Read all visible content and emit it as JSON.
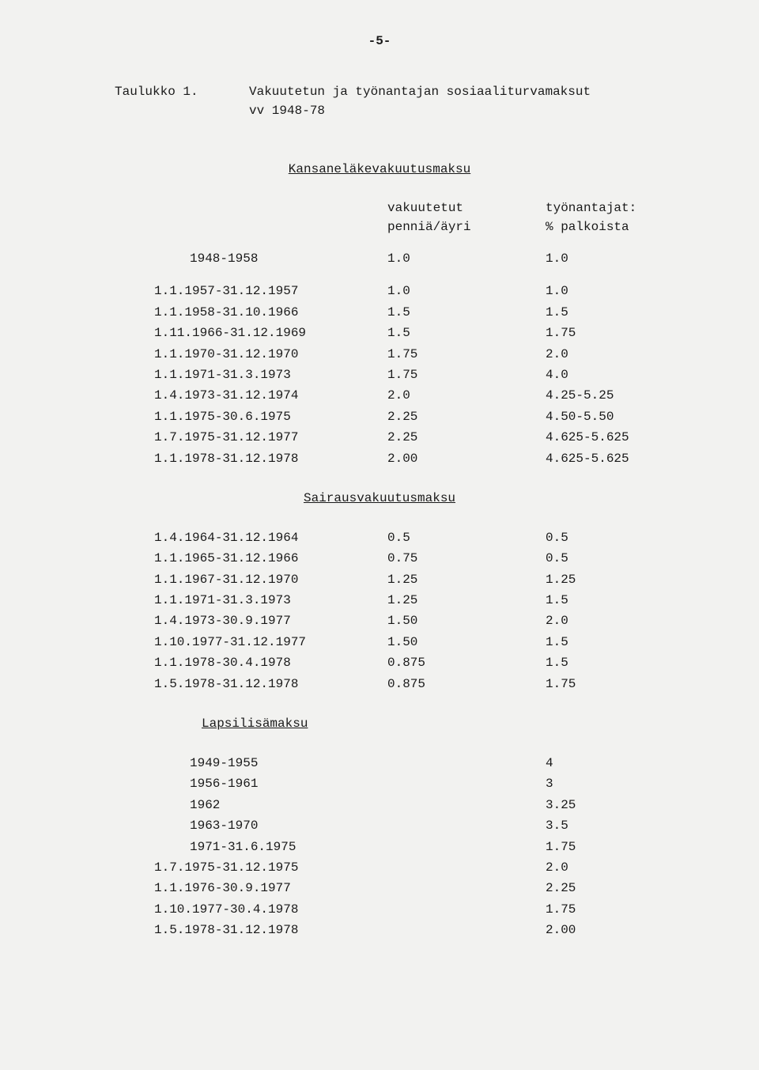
{
  "page_number": "-5-",
  "title_label": "Taulukko 1.",
  "title_text_line1": "Vakuutetun ja työnantajan sosiaaliturvamaksut",
  "title_text_line2": "vv 1948-78",
  "section1": {
    "heading": "Kansaneläkevakuutusmaksu",
    "col1_header_line1": "vakuutetut",
    "col1_header_line2": "penniä/äyri",
    "col2_header_line1": "työnantajat:",
    "col2_header_line2": "% palkoista",
    "rows": [
      {
        "period": "1948-1958",
        "indent": true,
        "v1": "1.0",
        "v2": "1.0"
      },
      {
        "period": "1.1.1957-31.12.1957",
        "v1": "1.0",
        "v2": "1.0"
      },
      {
        "period": "1.1.1958-31.10.1966",
        "v1": "1.5",
        "v2": "1.5"
      },
      {
        "period": "1.11.1966-31.12.1969",
        "v1": "1.5",
        "v2": "1.75"
      },
      {
        "period": "1.1.1970-31.12.1970",
        "v1": "1.75",
        "v2": "2.0"
      },
      {
        "period": "1.1.1971-31.3.1973",
        "v1": "1.75",
        "v2": "4.0"
      },
      {
        "period": "1.4.1973-31.12.1974",
        "v1": "2.0",
        "v2": "4.25-5.25"
      },
      {
        "period": "1.1.1975-30.6.1975",
        "v1": "2.25",
        "v2": "4.50-5.50"
      },
      {
        "period": "1.7.1975-31.12.1977",
        "v1": "2.25",
        "v2": "4.625-5.625"
      },
      {
        "period": "1.1.1978-31.12.1978",
        "v1": "2.00",
        "v2": "4.625-5.625"
      }
    ]
  },
  "section2": {
    "heading": "Sairausvakuutusmaksu",
    "rows": [
      {
        "period": "1.4.1964-31.12.1964",
        "v1": "0.5",
        "v2": "0.5"
      },
      {
        "period": "1.1.1965-31.12.1966",
        "v1": "0.75",
        "v2": "0.5"
      },
      {
        "period": "1.1.1967-31.12.1970",
        "v1": "1.25",
        "v2": "1.25"
      },
      {
        "period": "1.1.1971-31.3.1973",
        "v1": "1.25",
        "v2": "1.5"
      },
      {
        "period": "1.4.1973-30.9.1977",
        "v1": "1.50",
        "v2": "2.0"
      },
      {
        "period": "1.10.1977-31.12.1977",
        "v1": "1.50",
        "v2": "1.5"
      },
      {
        "period": "1.1.1978-30.4.1978",
        "v1": "0.875",
        "v2": "1.5"
      },
      {
        "period": "1.5.1978-31.12.1978",
        "v1": "0.875",
        "v2": "1.75"
      }
    ]
  },
  "section3": {
    "heading": "Lapsilisämaksu",
    "rows": [
      {
        "period": "1949-1955",
        "indent": true,
        "v1": "",
        "v2": "4"
      },
      {
        "period": "1956-1961",
        "indent": true,
        "v1": "",
        "v2": "3"
      },
      {
        "period": "1962",
        "indent": true,
        "v1": "",
        "v2": "3.25"
      },
      {
        "period": "1963-1970",
        "indent": true,
        "v1": "",
        "v2": "3.5"
      },
      {
        "period": "1971-31.6.1975",
        "indent": true,
        "v1": "",
        "v2": "1.75"
      },
      {
        "period": "1.7.1975-31.12.1975",
        "v1": "",
        "v2": "2.0"
      },
      {
        "period": "1.1.1976-30.9.1977",
        "v1": "",
        "v2": "2.25"
      },
      {
        "period": "1.10.1977-30.4.1978",
        "v1": "",
        "v2": "1.75"
      },
      {
        "period": "1.5.1978-31.12.1978",
        "v1": "",
        "v2": "2.00"
      }
    ]
  }
}
